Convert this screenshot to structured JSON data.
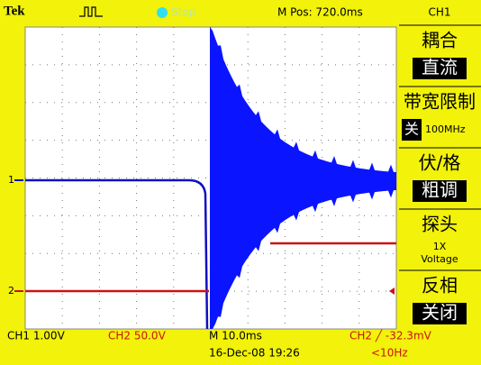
{
  "header": {
    "brand": "Tek",
    "status": "Stop",
    "position": "M Pos: 720.0ms",
    "channel": "CH1"
  },
  "markers": {
    "ch1": "1",
    "ch2": "2"
  },
  "menu": [
    {
      "title": "耦合",
      "value": "直流"
    },
    {
      "title": "带宽限制",
      "value": "关",
      "extra": "100MHz"
    },
    {
      "title": "伏/格",
      "value": "粗调"
    },
    {
      "title": "探头",
      "lines": [
        "1X",
        "Voltage"
      ]
    },
    {
      "title": "反相",
      "value": "关闭"
    }
  ],
  "footer": {
    "ch1": "CH1  1.00V",
    "ch2": "CH2  50.0V",
    "timebase": "M 10.0ms",
    "trigger": "CH2 ╱ -32.3mV",
    "date": "16-Dec-08 19:26",
    "freq": "<10Hz"
  }
}
